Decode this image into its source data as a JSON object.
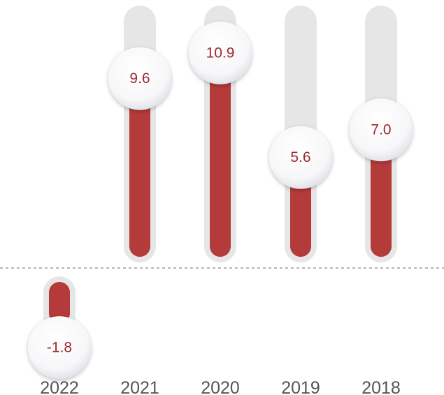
{
  "chart_data": {
    "type": "bar",
    "categories": [
      "2022",
      "2021",
      "2020",
      "2019",
      "2018"
    ],
    "values": [
      -1.8,
      9.6,
      10.9,
      5.6,
      7.0
    ],
    "value_labels": [
      "-1.8",
      "9.6",
      "10.9",
      "5.6",
      "7.0"
    ],
    "ylim": [
      -4.4,
      13.3
    ],
    "zero_line": "dashed",
    "grid": false,
    "colors": {
      "bar": "#b53a3a",
      "track": "#e6e6e6",
      "label_text": "#9b2a30",
      "category_text": "#555555",
      "zero_line": "#888888"
    }
  }
}
